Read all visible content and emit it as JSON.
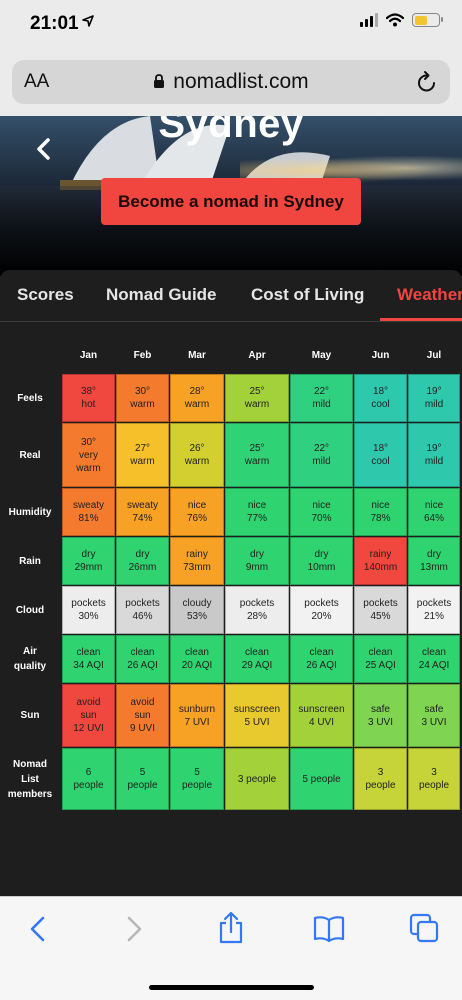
{
  "status": {
    "time": "21:01"
  },
  "browser": {
    "aa_label": "AA",
    "url": "nomadlist.com"
  },
  "hero": {
    "city": "Sydney",
    "cta": "Become a nomad in Sydney"
  },
  "tabs": [
    "Scores",
    "Nomad Guide",
    "Cost of Living",
    "Weather"
  ],
  "active_tab": "Weather",
  "weather": {
    "months": [
      "Jan",
      "Feb",
      "Mar",
      "Apr",
      "May",
      "Jun",
      "Jul"
    ],
    "rows": [
      {
        "label": [
          "Feels"
        ],
        "cells": [
          {
            "lines": [
              "38°",
              "hot"
            ],
            "color": "#f0473f"
          },
          {
            "lines": [
              "30°",
              "warm"
            ],
            "color": "#f47a2e"
          },
          {
            "lines": [
              "28°",
              "warm"
            ],
            "color": "#f7a125"
          },
          {
            "lines": [
              "25°",
              "warm"
            ],
            "color": "#a3d13a"
          },
          {
            "lines": [
              "22°",
              "mild"
            ],
            "color": "#2fd080"
          },
          {
            "lines": [
              "18°",
              "cool"
            ],
            "color": "#2ec8ad"
          },
          {
            "lines": [
              "19°",
              "mild"
            ],
            "color": "#2ec8ad"
          }
        ]
      },
      {
        "label": [
          "Real"
        ],
        "cells": [
          {
            "lines": [
              "30°",
              "very",
              "warm"
            ],
            "color": "#f47a2e"
          },
          {
            "lines": [
              "27°",
              "warm"
            ],
            "color": "#f6c02a"
          },
          {
            "lines": [
              "26°",
              "warm"
            ],
            "color": "#d3cf30"
          },
          {
            "lines": [
              "25°",
              "warm"
            ],
            "color": "#2fd274"
          },
          {
            "lines": [
              "22°",
              "mild"
            ],
            "color": "#2fd080"
          },
          {
            "lines": [
              "18°",
              "cool"
            ],
            "color": "#2ec8ad"
          },
          {
            "lines": [
              "19°",
              "mild"
            ],
            "color": "#2ec8ad"
          }
        ]
      },
      {
        "label": [
          "Humidity"
        ],
        "cells": [
          {
            "lines": [
              "sweaty",
              "81%"
            ],
            "color": "#f47a2e"
          },
          {
            "lines": [
              "sweaty",
              "74%"
            ],
            "color": "#f7a125"
          },
          {
            "lines": [
              "nice",
              "76%"
            ],
            "color": "#f7a125"
          },
          {
            "lines": [
              "nice",
              "77%"
            ],
            "color": "#2fd470"
          },
          {
            "lines": [
              "nice",
              "70%"
            ],
            "color": "#2fd470"
          },
          {
            "lines": [
              "nice",
              "78%"
            ],
            "color": "#2fd470"
          },
          {
            "lines": [
              "nice",
              "64%"
            ],
            "color": "#2fd470"
          }
        ]
      },
      {
        "label": [
          "Rain"
        ],
        "cells": [
          {
            "lines": [
              "dry",
              "29mm"
            ],
            "color": "#2fd470"
          },
          {
            "lines": [
              "dry",
              "26mm"
            ],
            "color": "#2fd470"
          },
          {
            "lines": [
              "rainy",
              "73mm"
            ],
            "color": "#f7a125"
          },
          {
            "lines": [
              "dry",
              "9mm"
            ],
            "color": "#2fd470"
          },
          {
            "lines": [
              "dry",
              "10mm"
            ],
            "color": "#2fd470"
          },
          {
            "lines": [
              "rainy",
              "140mm"
            ],
            "color": "#f0473f"
          },
          {
            "lines": [
              "dry",
              "13mm"
            ],
            "color": "#2fd470"
          }
        ]
      },
      {
        "label": [
          "Cloud"
        ],
        "cells": [
          {
            "lines": [
              "pockets",
              "30%"
            ],
            "color": "#ededed"
          },
          {
            "lines": [
              "pockets",
              "46%"
            ],
            "color": "#d9d9d9"
          },
          {
            "lines": [
              "cloudy",
              "53%"
            ],
            "color": "#c9c9c9"
          },
          {
            "lines": [
              "pockets",
              "28%"
            ],
            "color": "#ededed"
          },
          {
            "lines": [
              "pockets",
              "20%"
            ],
            "color": "#f2f2f2"
          },
          {
            "lines": [
              "pockets",
              "45%"
            ],
            "color": "#d9d9d9"
          },
          {
            "lines": [
              "pockets",
              "21%"
            ],
            "color": "#f2f2f2"
          }
        ]
      },
      {
        "label": [
          "Air",
          "quality"
        ],
        "cells": [
          {
            "lines": [
              "clean",
              "34 AQI"
            ],
            "color": "#2fd470"
          },
          {
            "lines": [
              "clean",
              "26 AQI"
            ],
            "color": "#2fd470"
          },
          {
            "lines": [
              "clean",
              "20 AQI"
            ],
            "color": "#2fd470"
          },
          {
            "lines": [
              "clean",
              "29 AQI"
            ],
            "color": "#2fd470"
          },
          {
            "lines": [
              "clean",
              "26 AQI"
            ],
            "color": "#2fd470"
          },
          {
            "lines": [
              "clean",
              "25 AQI"
            ],
            "color": "#2fd470"
          },
          {
            "lines": [
              "clean",
              "24 AQI"
            ],
            "color": "#2fd470"
          }
        ]
      },
      {
        "label": [
          "Sun"
        ],
        "cells": [
          {
            "lines": [
              "avoid",
              "sun",
              "12 UVI"
            ],
            "color": "#f0473f"
          },
          {
            "lines": [
              "avoid",
              "sun",
              "9 UVI"
            ],
            "color": "#f47a2e"
          },
          {
            "lines": [
              "sunburn",
              "7 UVI"
            ],
            "color": "#f7a125"
          },
          {
            "lines": [
              "sunscreen",
              "5 UVI"
            ],
            "color": "#e8c92e"
          },
          {
            "lines": [
              "sunscreen",
              "4 UVI"
            ],
            "color": "#a3d13a"
          },
          {
            "lines": [
              "safe",
              "3 UVI"
            ],
            "color": "#7fd451"
          },
          {
            "lines": [
              "safe",
              "3 UVI"
            ],
            "color": "#7fd451"
          }
        ]
      },
      {
        "label": [
          "Nomad",
          "List",
          "members"
        ],
        "cells": [
          {
            "lines": [
              "6",
              "people"
            ],
            "color": "#2fd470"
          },
          {
            "lines": [
              "5",
              "people"
            ],
            "color": "#2fd470"
          },
          {
            "lines": [
              "5",
              "people"
            ],
            "color": "#2fd470"
          },
          {
            "lines": [
              "3 people"
            ],
            "color": "#a3d13a"
          },
          {
            "lines": [
              "5 people"
            ],
            "color": "#2fd470"
          },
          {
            "lines": [
              "3",
              "people"
            ],
            "color": "#c6d43a"
          },
          {
            "lines": [
              "3",
              "people"
            ],
            "color": "#c6d43a"
          }
        ]
      }
    ]
  },
  "colors": {
    "accent": "#f0463f",
    "panel_bg": "#1e1e1e",
    "ios_blue": "#3478f6"
  },
  "toolbar_icons": [
    "back-icon",
    "forward-icon",
    "share-icon",
    "bookmarks-icon",
    "tabs-icon"
  ]
}
